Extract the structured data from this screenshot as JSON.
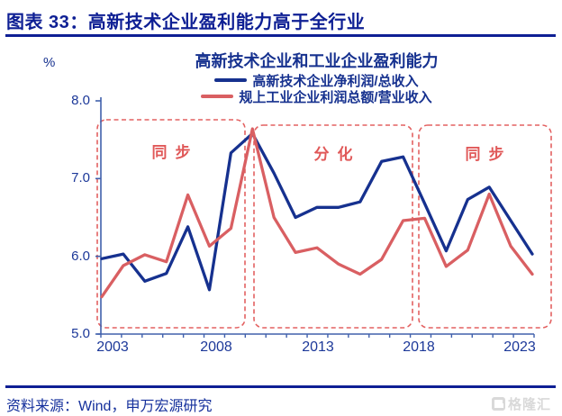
{
  "header": {
    "title": "图表 33：高新技术企业盈利能力高于全行业"
  },
  "chart_data": {
    "type": "line",
    "title": "高新技术企业和工业企业盈利能力",
    "unit_label": "%",
    "x": [
      2003,
      2004,
      2005,
      2006,
      2007,
      2008,
      2009,
      2010,
      2011,
      2012,
      2013,
      2014,
      2015,
      2016,
      2017,
      2018,
      2019,
      2020,
      2021,
      2022,
      2023
    ],
    "series": [
      {
        "name": "高新技术企业净利润/总收入",
        "color": "#16318f",
        "values": [
          5.97,
          6.03,
          5.68,
          5.78,
          6.38,
          5.57,
          7.33,
          7.58,
          7.07,
          6.5,
          6.63,
          6.63,
          6.7,
          7.22,
          7.28,
          6.68,
          6.07,
          6.73,
          6.89,
          6.46,
          6.03
        ]
      },
      {
        "name": "规上工业企业利润总额/营业收入",
        "color": "#d95f62",
        "values": [
          5.48,
          5.88,
          6.02,
          5.93,
          6.79,
          6.13,
          6.36,
          7.64,
          6.5,
          6.05,
          6.11,
          5.9,
          5.77,
          5.96,
          6.46,
          6.49,
          5.87,
          6.08,
          6.8,
          6.13,
          5.77
        ]
      }
    ],
    "ylim": [
      5.0,
      8.0
    ],
    "y_ticks": [
      "8.0",
      "7.0",
      "6.0",
      "5.0"
    ],
    "x_tick_labels": [
      "2003",
      "2008",
      "2013",
      "2018",
      "2023"
    ],
    "annotations": [
      {
        "label": "同步"
      },
      {
        "label": "分化"
      },
      {
        "label": "同步"
      }
    ],
    "legend_position": "top",
    "grid": false,
    "accent_colors": {
      "axis": "#4060ac",
      "dashed_box": "#e36161",
      "annotation_text": "#e05858",
      "heading_blue": "#0e1f94"
    }
  },
  "footer": {
    "source": "资料来源：Wind，申万宏源研究",
    "logo_text": "格隆汇"
  }
}
